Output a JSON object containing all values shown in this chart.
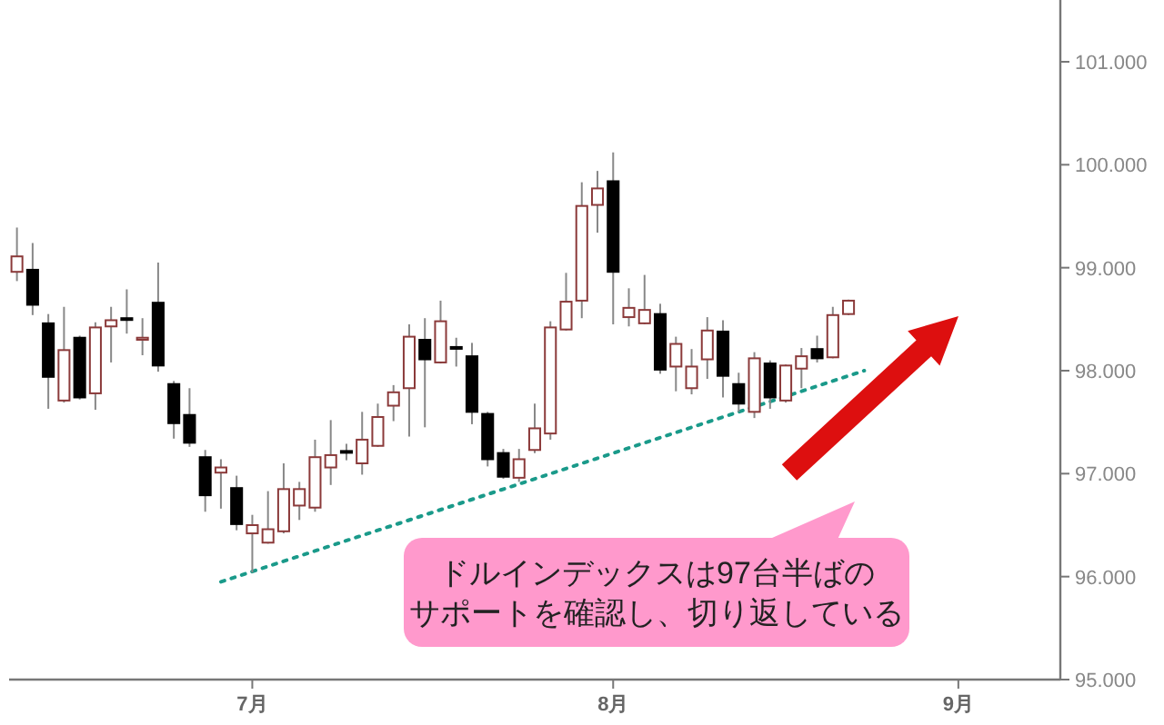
{
  "chart_data": {
    "type": "candlestick",
    "categories": [
      null,
      null,
      null,
      null,
      null,
      null,
      null,
      null,
      null,
      null,
      null,
      null,
      null,
      null,
      null,
      "7月",
      null,
      null,
      null,
      null,
      null,
      null,
      null,
      null,
      null,
      null,
      null,
      null,
      null,
      null,
      null,
      null,
      null,
      null,
      null,
      null,
      null,
      null,
      "8月",
      null,
      null,
      null,
      null,
      null,
      null,
      null,
      null,
      null,
      null,
      null,
      null,
      null,
      null,
      null,
      null,
      null,
      null,
      null,
      null,
      null,
      "9月",
      null,
      null,
      null,
      null,
      null,
      null
    ],
    "ohlc": [
      [
        98.96,
        99.39,
        98.87,
        99.11
      ],
      [
        98.98,
        99.24,
        98.54,
        98.64
      ],
      [
        98.46,
        98.55,
        97.63,
        97.94
      ],
      [
        97.71,
        98.62,
        97.69,
        98.2
      ],
      [
        98.32,
        98.34,
        97.72,
        97.74
      ],
      [
        97.78,
        98.47,
        97.62,
        98.42
      ],
      [
        98.43,
        98.62,
        98.08,
        98.49
      ],
      [
        98.51,
        98.79,
        98.36,
        98.5
      ],
      [
        98.3,
        98.51,
        98.15,
        98.32
      ],
      [
        98.66,
        99.05,
        97.99,
        98.05
      ],
      [
        97.87,
        97.9,
        97.34,
        97.49
      ],
      [
        97.57,
        97.83,
        97.26,
        97.3
      ],
      [
        97.16,
        97.23,
        96.63,
        96.79
      ],
      [
        97.01,
        97.14,
        96.66,
        97.06
      ],
      [
        96.86,
        96.98,
        96.45,
        96.51
      ],
      [
        96.42,
        96.6,
        96.04,
        96.5
      ],
      [
        96.33,
        96.83,
        96.32,
        96.46
      ],
      [
        96.44,
        97.1,
        96.42,
        96.85
      ],
      [
        96.69,
        96.92,
        96.55,
        96.85
      ],
      [
        96.67,
        97.33,
        96.63,
        97.16
      ],
      [
        97.06,
        97.52,
        96.89,
        97.18
      ],
      [
        97.22,
        97.29,
        97.13,
        97.21
      ],
      [
        97.1,
        97.6,
        96.99,
        97.33
      ],
      [
        97.27,
        97.68,
        97.26,
        97.55
      ],
      [
        97.66,
        97.86,
        97.51,
        97.79
      ],
      [
        97.83,
        98.45,
        97.36,
        98.33
      ],
      [
        98.3,
        98.51,
        97.45,
        98.11
      ],
      [
        98.08,
        98.68,
        98.07,
        98.48
      ],
      [
        98.23,
        98.32,
        98.04,
        98.22
      ],
      [
        98.14,
        98.27,
        97.48,
        97.6
      ],
      [
        97.58,
        97.6,
        97.07,
        97.14
      ],
      [
        97.2,
        97.24,
        96.95,
        96.97
      ],
      [
        96.96,
        97.24,
        96.92,
        97.14
      ],
      [
        97.23,
        97.68,
        97.2,
        97.44
      ],
      [
        97.39,
        98.48,
        97.33,
        98.42
      ],
      [
        98.4,
        98.95,
        98.39,
        98.67
      ],
      [
        98.68,
        99.83,
        98.51,
        99.6
      ],
      [
        99.61,
        99.94,
        99.34,
        99.77
      ],
      [
        99.84,
        100.12,
        98.45,
        98.96
      ],
      [
        98.52,
        98.8,
        98.43,
        98.61
      ],
      [
        98.46,
        98.93,
        98.45,
        98.59
      ],
      [
        98.55,
        98.65,
        97.97,
        98.01
      ],
      [
        98.04,
        98.33,
        97.8,
        98.26
      ],
      [
        97.83,
        98.21,
        97.77,
        98.04
      ],
      [
        98.11,
        98.52,
        97.92,
        98.39
      ],
      [
        98.38,
        98.49,
        97.74,
        97.95
      ],
      [
        97.87,
        97.98,
        97.6,
        97.68
      ],
      [
        97.6,
        98.18,
        97.54,
        98.12
      ],
      [
        98.07,
        98.1,
        97.63,
        97.74
      ],
      [
        97.71,
        98.06,
        97.69,
        98.05
      ],
      [
        98.02,
        98.22,
        97.83,
        98.14
      ],
      [
        98.21,
        98.34,
        98.08,
        98.12
      ],
      [
        98.13,
        98.62,
        98.12,
        98.54
      ],
      [
        98.55,
        98.69,
        98.54,
        98.68
      ],
      null,
      null,
      null,
      null,
      null,
      null,
      null,
      null,
      null,
      null,
      null,
      null,
      null
    ],
    "series": [
      {
        "type": "line",
        "values": [
          null,
          null,
          null,
          null,
          null,
          null,
          null,
          null,
          null,
          null,
          null,
          null,
          null,
          95.95,
          null,
          null,
          null,
          null,
          null,
          null,
          null,
          null,
          null,
          null,
          null,
          null,
          null,
          null,
          null,
          null,
          null,
          null,
          null,
          null,
          null,
          null,
          null,
          null,
          null,
          null,
          null,
          null,
          null,
          null,
          null,
          null,
          null,
          null,
          null,
          null,
          null,
          null,
          null,
          null,
          98.0,
          null,
          null,
          null,
          null,
          null,
          null,
          null,
          null,
          null,
          null,
          null,
          null
        ],
        "color": "#1a9a8a",
        "line_style": "dotted"
      }
    ],
    "ylim": [
      95,
      101.6
    ],
    "yticks": [
      {
        "value": 95,
        "label": "95.000"
      },
      {
        "value": 96,
        "label": "96.000"
      },
      {
        "value": 97,
        "label": "97.000"
      },
      {
        "value": 98,
        "label": "98.000"
      },
      {
        "value": 99,
        "label": "99.000"
      },
      {
        "value": 100,
        "label": "100.000"
      },
      {
        "value": 101,
        "label": "101.000"
      }
    ],
    "annotations": [
      "ドルインデックスは97台半ばの",
      "サポートを確認し、切り返している"
    ]
  }
}
